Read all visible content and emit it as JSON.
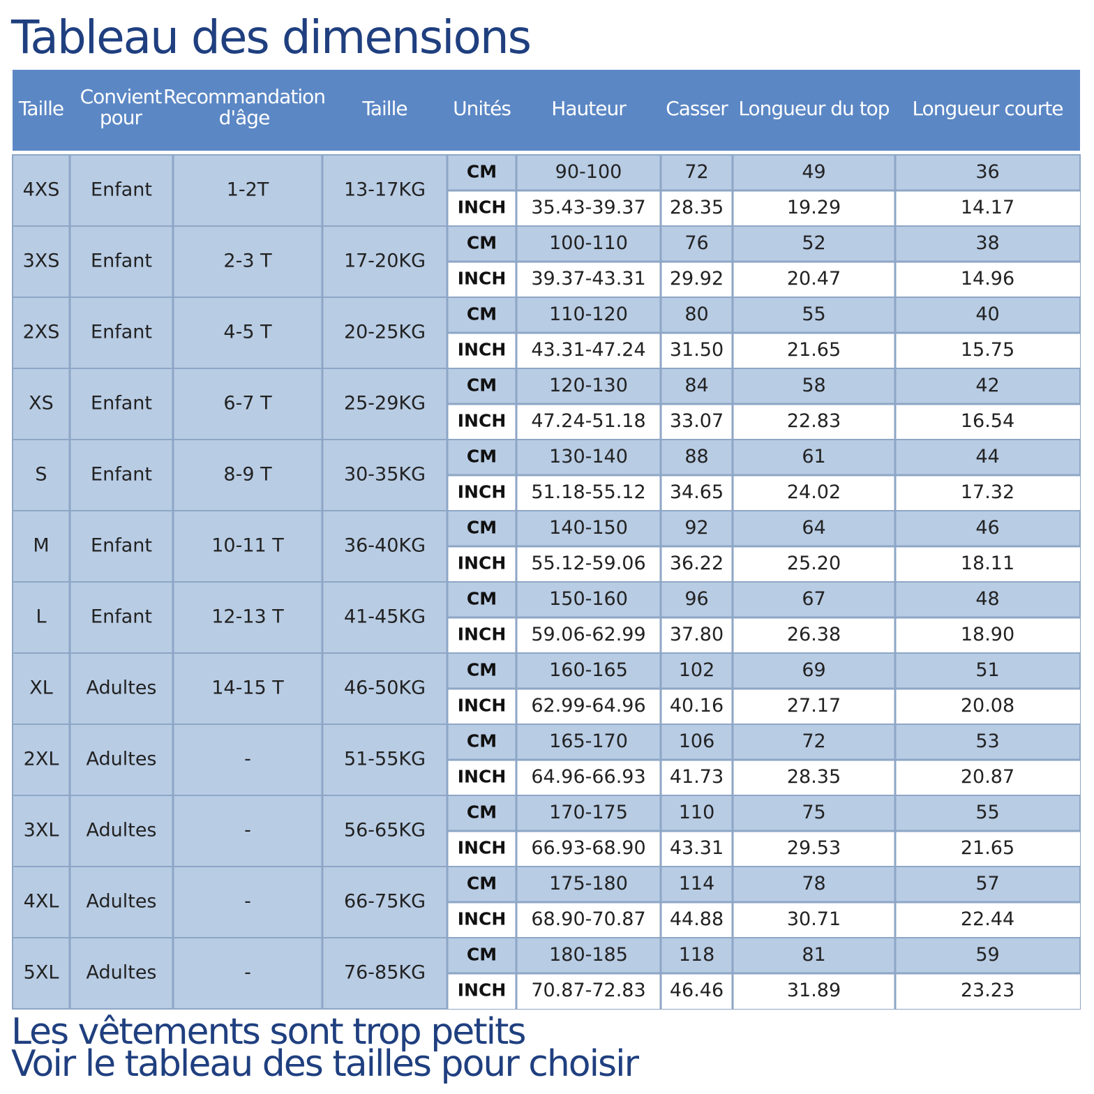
{
  "title": "Tableau des dimensions",
  "table": {
    "headers": [
      "Taille",
      "Convient pour",
      "Recommandation d'âge",
      "Taille",
      "Unités",
      "Hauteur",
      "Casser",
      "Longueur du top",
      "Longueur courte"
    ],
    "rows": [
      {
        "size": "4XS",
        "group": "Enfant",
        "age": "1-2T",
        "weight": "13-17KG",
        "lines": [
          [
            "CM",
            "90-100",
            "72",
            "49",
            "36"
          ],
          [
            "INCH",
            "35.43-39.37",
            "28.35",
            "19.29",
            "14.17"
          ]
        ]
      },
      {
        "size": "3XS",
        "group": "Enfant",
        "age": "2-3 T",
        "weight": "17-20KG",
        "lines": [
          [
            "CM",
            "100-110",
            "76",
            "52",
            "38"
          ],
          [
            "INCH",
            "39.37-43.31",
            "29.92",
            "20.47",
            "14.96"
          ]
        ]
      },
      {
        "size": "2XS",
        "group": "Enfant",
        "age": "4-5 T",
        "weight": "20-25KG",
        "lines": [
          [
            "CM",
            "110-120",
            "80",
            "55",
            "40"
          ],
          [
            "INCH",
            "43.31-47.24",
            "31.50",
            "21.65",
            "15.75"
          ]
        ]
      },
      {
        "size": "XS",
        "group": "Enfant",
        "age": "6-7 T",
        "weight": "25-29KG",
        "lines": [
          [
            "CM",
            "120-130",
            "84",
            "58",
            "42"
          ],
          [
            "INCH",
            "47.24-51.18",
            "33.07",
            "22.83",
            "16.54"
          ]
        ]
      },
      {
        "size": "S",
        "group": "Enfant",
        "age": "8-9 T",
        "weight": "30-35KG",
        "lines": [
          [
            "CM",
            "130-140",
            "88",
            "61",
            "44"
          ],
          [
            "INCH",
            "51.18-55.12",
            "34.65",
            "24.02",
            "17.32"
          ]
        ]
      },
      {
        "size": "M",
        "group": "Enfant",
        "age": "10-11 T",
        "weight": "36-40KG",
        "lines": [
          [
            "CM",
            "140-150",
            "92",
            "64",
            "46"
          ],
          [
            "INCH",
            "55.12-59.06",
            "36.22",
            "25.20",
            "18.11"
          ]
        ]
      },
      {
        "size": "L",
        "group": "Enfant",
        "age": "12-13 T",
        "weight": "41-45KG",
        "lines": [
          [
            "CM",
            "150-160",
            "96",
            "67",
            "48"
          ],
          [
            "INCH",
            "59.06-62.99",
            "37.80",
            "26.38",
            "18.90"
          ]
        ]
      },
      {
        "size": "XL",
        "group": "Adultes",
        "age": "14-15 T",
        "weight": "46-50KG",
        "lines": [
          [
            "CM",
            "160-165",
            "102",
            "69",
            "51"
          ],
          [
            "INCH",
            "62.99-64.96",
            "40.16",
            "27.17",
            "20.08"
          ]
        ]
      },
      {
        "size": "2XL",
        "group": "Adultes",
        "age": "-",
        "weight": "51-55KG",
        "lines": [
          [
            "CM",
            "165-170",
            "106",
            "72",
            "53"
          ],
          [
            "INCH",
            "64.96-66.93",
            "41.73",
            "28.35",
            "20.87"
          ]
        ]
      },
      {
        "size": "3XL",
        "group": "Adultes",
        "age": "-",
        "weight": "56-65KG",
        "lines": [
          [
            "CM",
            "170-175",
            "110",
            "75",
            "55"
          ],
          [
            "INCH",
            "66.93-68.90",
            "43.31",
            "29.53",
            "21.65"
          ]
        ]
      },
      {
        "size": "4XL",
        "group": "Adultes",
        "age": "-",
        "weight": "66-75KG",
        "lines": [
          [
            "CM",
            "175-180",
            "114",
            "78",
            "57"
          ],
          [
            "INCH",
            "68.90-70.87",
            "44.88",
            "30.71",
            "22.44"
          ]
        ]
      },
      {
        "size": "5XL",
        "group": "Adultes",
        "age": "-",
        "weight": "76-85KG",
        "lines": [
          [
            "CM",
            "180-185",
            "118",
            "81",
            "59"
          ],
          [
            "INCH",
            "70.87-72.83",
            "46.46",
            "31.89",
            "23.23"
          ]
        ]
      }
    ]
  },
  "footer": [
    "Les vêtements sont trop petits",
    "Voir le tableau des tailles pour choisir"
  ]
}
